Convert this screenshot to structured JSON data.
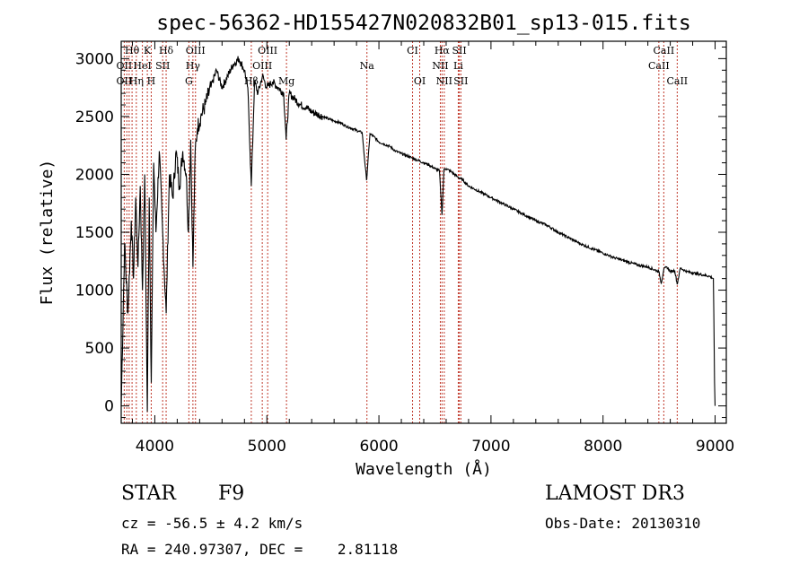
{
  "chart_data": {
    "type": "line",
    "title": "spec-56362-HD155427N020832B01_sp13-015.fits",
    "xlabel": "Wavelength (Å)",
    "ylabel": "Flux (relative)",
    "xlim": [
      3700,
      9100
    ],
    "ylim": [
      -150,
      3150
    ],
    "xticks": [
      "4000",
      "5000",
      "6000",
      "7000",
      "8000",
      "9000"
    ],
    "xtick_values": [
      4000,
      5000,
      6000,
      7000,
      8000,
      9000
    ],
    "yticks": [
      "0",
      "500",
      "1000",
      "1500",
      "2000",
      "2500",
      "3000"
    ],
    "ytick_values": [
      0,
      500,
      1000,
      1500,
      2000,
      2500,
      3000
    ],
    "series": [
      {
        "name": "flux",
        "x": [
          3700,
          3730,
          3760,
          3790,
          3810,
          3830,
          3850,
          3870,
          3890,
          3910,
          3933,
          3950,
          3968,
          3990,
          4010,
          4040,
          4070,
          4101,
          4130,
          4160,
          4190,
          4220,
          4250,
          4280,
          4300,
          4320,
          4340,
          4360,
          4380,
          4410,
          4450,
          4500,
          4550,
          4600,
          4650,
          4700,
          4750,
          4800,
          4830,
          4861,
          4890,
          4920,
          4960,
          5000,
          5050,
          5100,
          5150,
          5172,
          5200,
          5250,
          5300,
          5350,
          5400,
          5450,
          5500,
          5550,
          5600,
          5650,
          5700,
          5750,
          5800,
          5850,
          5890,
          5920,
          5950,
          6000,
          6050,
          6100,
          6150,
          6200,
          6250,
          6300,
          6350,
          6400,
          6450,
          6500,
          6540,
          6563,
          6580,
          6600,
          6650,
          6700,
          6750,
          6800,
          6900,
          7000,
          7100,
          7200,
          7300,
          7400,
          7500,
          7600,
          7700,
          7800,
          7900,
          8000,
          8100,
          8200,
          8300,
          8400,
          8498,
          8520,
          8542,
          8570,
          8600,
          8640,
          8662,
          8690,
          8750,
          8800,
          8850,
          8900,
          8950,
          8985,
          8995,
          9000
        ],
        "y": [
          0,
          1400,
          800,
          1600,
          1100,
          1800,
          1200,
          1900,
          1000,
          2000,
          -50,
          1800,
          200,
          2100,
          1500,
          2200,
          1500,
          800,
          2000,
          1800,
          2200,
          1900,
          2200,
          2000,
          1500,
          2300,
          1200,
          2200,
          2400,
          2500,
          2600,
          2750,
          2900,
          2750,
          2850,
          2950,
          3000,
          2900,
          2750,
          1900,
          2800,
          2700,
          2850,
          2750,
          2800,
          2750,
          2700,
          2300,
          2700,
          2650,
          2600,
          2580,
          2540,
          2520,
          2500,
          2480,
          2460,
          2450,
          2420,
          2400,
          2380,
          2360,
          1950,
          2350,
          2330,
          2280,
          2260,
          2240,
          2200,
          2180,
          2160,
          2140,
          2120,
          2100,
          2080,
          2050,
          2030,
          1650,
          2040,
          2050,
          2020,
          1980,
          1950,
          1900,
          1850,
          1800,
          1750,
          1700,
          1650,
          1600,
          1560,
          1500,
          1450,
          1400,
          1360,
          1320,
          1280,
          1250,
          1220,
          1200,
          1160,
          1060,
          1180,
          1200,
          1160,
          1170,
          1050,
          1190,
          1160,
          1150,
          1140,
          1130,
          1120,
          1100,
          200,
          0
        ]
      }
    ],
    "line_labels": [
      {
        "text": "Hθ",
        "wl": 3797,
        "row": 0
      },
      {
        "text": "K",
        "wl": 3933,
        "row": 0
      },
      {
        "text": "Hδ",
        "wl": 4101,
        "row": 0
      },
      {
        "text": "OIII",
        "wl": 4363,
        "row": 0
      },
      {
        "text": "OIII",
        "wl": 5007,
        "row": 0
      },
      {
        "text": "CI",
        "wl": 6300,
        "row": 0
      },
      {
        "text": "Hα",
        "wl": 6563,
        "row": 0
      },
      {
        "text": "SII",
        "wl": 6717,
        "row": 0
      },
      {
        "text": "CaII",
        "wl": 8542,
        "row": 0
      },
      {
        "text": "OII",
        "wl": 3727,
        "row": 1
      },
      {
        "text": "HeI",
        "wl": 3889,
        "row": 1
      },
      {
        "text": "SII",
        "wl": 4070,
        "row": 1
      },
      {
        "text": "Hγ",
        "wl": 4340,
        "row": 1
      },
      {
        "text": "OIII",
        "wl": 4959,
        "row": 1
      },
      {
        "text": "Na",
        "wl": 5893,
        "row": 1
      },
      {
        "text": "NII",
        "wl": 6548,
        "row": 1
      },
      {
        "text": "Li",
        "wl": 6708,
        "row": 1
      },
      {
        "text": "CaII",
        "wl": 8498,
        "row": 1
      },
      {
        "text": "OII",
        "wl": 3727,
        "row": 2
      },
      {
        "text": "Hη",
        "wl": 3835,
        "row": 2
      },
      {
        "text": "H",
        "wl": 3968,
        "row": 2
      },
      {
        "text": "G",
        "wl": 4304,
        "row": 2
      },
      {
        "text": "Hβ",
        "wl": 4861,
        "row": 2
      },
      {
        "text": "Mg",
        "wl": 5175,
        "row": 2
      },
      {
        "text": "OI",
        "wl": 6364,
        "row": 2
      },
      {
        "text": "NII",
        "wl": 6583,
        "row": 2
      },
      {
        "text": "SII",
        "wl": 6731,
        "row": 2
      },
      {
        "text": "CaII",
        "wl": 8662,
        "row": 2
      }
    ],
    "marker_lines": [
      3727,
      3750,
      3771,
      3797,
      3835,
      3889,
      3933,
      3968,
      4070,
      4101,
      4304,
      4340,
      4363,
      4861,
      4959,
      5007,
      5175,
      5893,
      6300,
      6364,
      6548,
      6563,
      6583,
      6708,
      6717,
      6731,
      8498,
      8542,
      8662
    ]
  },
  "info": {
    "object_class": "STAR",
    "subclass": "F9",
    "survey": "LAMOST DR3",
    "redshift_line": "cz = -56.5 ± 4.2 km/s",
    "obs_date_line": "Obs-Date: 20130310",
    "coords_line": "RA = 240.97307, DEC =    2.81118"
  }
}
